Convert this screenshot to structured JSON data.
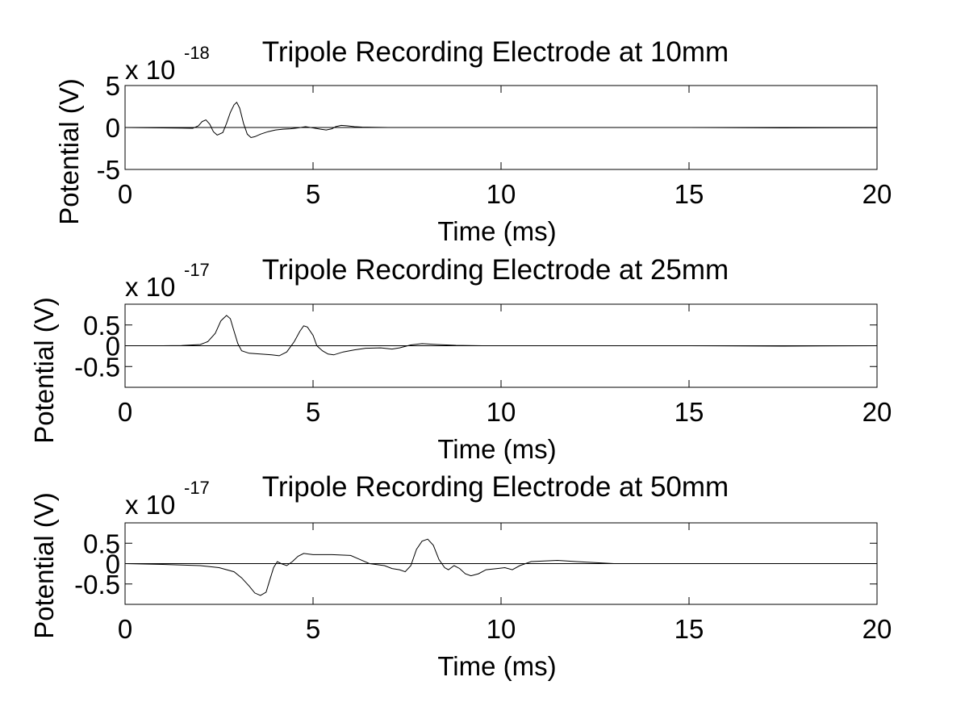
{
  "chart_data": [
    {
      "type": "line",
      "title": "Tripole Recording Electrode at 10mm",
      "xlabel": "Time (ms)",
      "ylabel": "Potential (V)",
      "exponent_prefix": "x 10",
      "exponent_power": "-18",
      "xlim": [
        0,
        20
      ],
      "ylim": [
        -5,
        5
      ],
      "xticks": [
        "0",
        "5",
        "10",
        "15",
        "20"
      ],
      "yticks": [
        {
          "value": 5,
          "label": "5"
        },
        {
          "value": 0,
          "label": "0"
        },
        {
          "value": -5,
          "label": "-5"
        }
      ],
      "grid": false,
      "series": [
        {
          "x": [
            0,
            0.5,
            1.0,
            1.5,
            1.8,
            1.95,
            2.05,
            2.15,
            2.25,
            2.35,
            2.45,
            2.6,
            2.7,
            2.8,
            2.9,
            2.97,
            3.05,
            3.15,
            3.25,
            3.35,
            3.45,
            3.6,
            3.8,
            4.0,
            4.2,
            4.4,
            4.6,
            4.8,
            5.0,
            5.2,
            5.35,
            5.5,
            5.6,
            5.75,
            5.9,
            6.1,
            6.3,
            6.6,
            7.0,
            8.0,
            10.0,
            12.0,
            15.0,
            17.5,
            20.0
          ],
          "values": [
            0,
            -0.02,
            -0.05,
            -0.08,
            -0.1,
            0.2,
            0.7,
            0.9,
            0.4,
            -0.5,
            -0.9,
            -0.6,
            0.5,
            1.8,
            2.7,
            3.0,
            2.3,
            0.5,
            -0.8,
            -1.2,
            -1.1,
            -0.8,
            -0.5,
            -0.3,
            -0.2,
            -0.15,
            -0.05,
            0.1,
            -0.05,
            -0.2,
            -0.3,
            -0.15,
            0.1,
            0.25,
            0.2,
            0.1,
            0.05,
            0.02,
            0,
            0,
            0,
            0,
            0,
            -0.05,
            -0.02
          ]
        }
      ]
    },
    {
      "type": "line",
      "title": "Tripole Recording Electrode at 25mm",
      "xlabel": "Time (ms)",
      "ylabel": "Potential (V)",
      "exponent_prefix": "x 10",
      "exponent_power": "-17",
      "xlim": [
        0,
        20
      ],
      "ylim": [
        -1,
        1
      ],
      "xticks": [
        "0",
        "5",
        "10",
        "15",
        "20"
      ],
      "yticks": [
        {
          "value": 0.5,
          "label": "0.5"
        },
        {
          "value": 0,
          "label": "0"
        },
        {
          "value": -0.5,
          "label": "-0.5"
        }
      ],
      "grid": false,
      "series": [
        {
          "x": [
            0,
            1.0,
            1.5,
            2.0,
            2.2,
            2.4,
            2.55,
            2.7,
            2.8,
            2.9,
            3.0,
            3.1,
            3.3,
            3.6,
            3.9,
            4.1,
            4.3,
            4.5,
            4.65,
            4.75,
            4.85,
            5.0,
            5.1,
            5.25,
            5.4,
            5.55,
            5.8,
            6.1,
            6.4,
            6.8,
            7.1,
            7.3,
            7.6,
            7.9,
            8.3,
            8.8,
            9.5,
            10.0,
            12.0,
            15.0,
            17.5,
            20.0
          ],
          "values": [
            0,
            0,
            0.005,
            0.03,
            0.1,
            0.3,
            0.6,
            0.73,
            0.65,
            0.35,
            0.05,
            -0.12,
            -0.18,
            -0.2,
            -0.22,
            -0.24,
            -0.15,
            0.1,
            0.35,
            0.48,
            0.45,
            0.25,
            0.0,
            -0.12,
            -0.2,
            -0.22,
            -0.15,
            -0.1,
            -0.06,
            -0.05,
            -0.08,
            -0.05,
            0.02,
            0.05,
            0.03,
            0.01,
            0,
            0,
            0,
            0,
            -0.01,
            0
          ]
        }
      ]
    },
    {
      "type": "line",
      "title": "Tripole Recording Electrode at 50mm",
      "xlabel": "Time (ms)",
      "ylabel": "Potential (V)",
      "exponent_prefix": "x 10",
      "exponent_power": "-17",
      "xlim": [
        0,
        20
      ],
      "ylim": [
        -1,
        1
      ],
      "xticks": [
        "0",
        "5",
        "10",
        "15",
        "20"
      ],
      "yticks": [
        {
          "value": 0.5,
          "label": "0.5"
        },
        {
          "value": 0,
          "label": "0"
        },
        {
          "value": -0.5,
          "label": "-0.5"
        }
      ],
      "grid": false,
      "series": [
        {
          "x": [
            0,
            1.0,
            2.0,
            2.5,
            2.9,
            3.1,
            3.3,
            3.45,
            3.6,
            3.75,
            3.85,
            3.95,
            4.05,
            4.15,
            4.3,
            4.45,
            4.6,
            4.75,
            5.0,
            5.5,
            6.0,
            6.2,
            6.5,
            6.9,
            7.1,
            7.3,
            7.45,
            7.6,
            7.75,
            7.9,
            8.05,
            8.2,
            8.35,
            8.5,
            8.6,
            8.75,
            8.9,
            9.05,
            9.2,
            9.4,
            9.6,
            9.9,
            10.1,
            10.3,
            10.5,
            10.8,
            11.5,
            12.0,
            13.0,
            14.0,
            17.5,
            20.0
          ],
          "values": [
            0,
            -0.02,
            -0.05,
            -0.1,
            -0.2,
            -0.35,
            -0.55,
            -0.72,
            -0.78,
            -0.7,
            -0.4,
            -0.1,
            0.05,
            0.0,
            -0.05,
            0.05,
            0.18,
            0.25,
            0.22,
            0.22,
            0.2,
            0.12,
            0.0,
            -0.05,
            -0.12,
            -0.15,
            -0.2,
            -0.05,
            0.35,
            0.55,
            0.6,
            0.45,
            0.1,
            -0.1,
            -0.15,
            -0.05,
            -0.12,
            -0.25,
            -0.3,
            -0.25,
            -0.15,
            -0.12,
            -0.1,
            -0.15,
            -0.05,
            0.05,
            0.08,
            0.05,
            0.0,
            0.0,
            0.0,
            0.0
          ]
        }
      ]
    }
  ]
}
